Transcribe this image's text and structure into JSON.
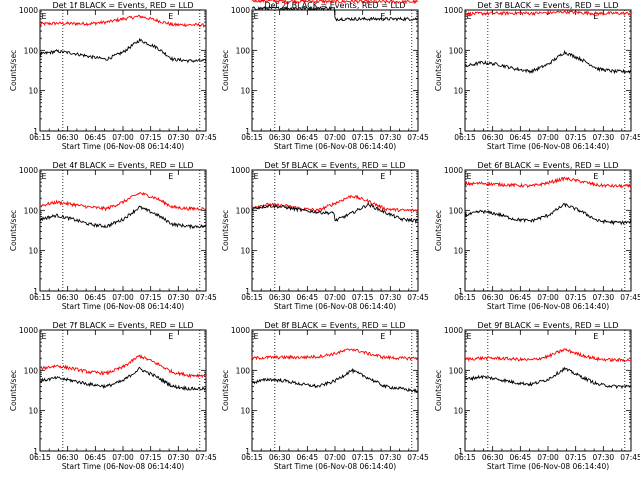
{
  "colors": {
    "events": "#000000",
    "lld": "#ff0000",
    "axis": "#000000",
    "background": "#ffffff"
  },
  "chart_data": [
    {
      "type": "line",
      "title": "Det 1f BLACK = Events, RED = LLD",
      "xlabel": "Start Time (06-Nov-08 06:14:40)",
      "ylabel": "Counts/sec",
      "ylog": true,
      "ylim": [
        1,
        1000
      ],
      "yticks": [
        "1",
        "10",
        "100",
        "1000"
      ],
      "xticks": [
        "06:15",
        "06:30",
        "06:45",
        "07:00",
        "07:15",
        "07:30",
        "07:45"
      ],
      "xlim_minutes": [
        0,
        40
      ],
      "marker_label": "E",
      "marker_minute": 31.5,
      "vlines_minutes": [
        5.5,
        38.5
      ],
      "annotations": [
        "E"
      ],
      "series": [
        {
          "color": "red",
          "x": [
            0,
            4,
            8,
            12,
            16,
            20,
            24,
            28,
            32,
            36,
            40
          ],
          "y": [
            450,
            470,
            460,
            460,
            500,
            600,
            700,
            560,
            430,
            430,
            420
          ]
        },
        {
          "color": "black",
          "x": [
            0,
            4,
            8,
            12,
            16,
            20,
            24,
            28,
            32,
            36,
            40
          ],
          "y": [
            80,
            95,
            85,
            70,
            60,
            90,
            180,
            120,
            60,
            55,
            55
          ]
        }
      ]
    },
    {
      "type": "line",
      "title": "Det 2f BLACK = Events, RED = LLD",
      "xlabel": "Start Time (06-Nov-08 06:14:40)",
      "ylabel": "Counts/sec",
      "ylog": true,
      "ylim": [
        1,
        1000
      ],
      "yticks": [
        "1",
        "10",
        "100",
        "1000"
      ],
      "xticks": [
        "06:15",
        "06:30",
        "06:45",
        "07:00",
        "07:15",
        "07:30",
        "07:45"
      ],
      "xlim_minutes": [
        0,
        40
      ],
      "marker_label": "E",
      "marker_minute": 31.5,
      "vlines_minutes": [
        5.5,
        38.5
      ],
      "annotations": [
        "E"
      ],
      "series": [
        {
          "color": "red",
          "x": [
            0,
            4,
            8,
            12,
            16,
            20,
            24,
            28,
            32,
            36,
            40
          ],
          "y": [
            1700,
            1700,
            1650,
            1650,
            1650,
            1600,
            1650,
            1600,
            1600,
            1600,
            1600
          ]
        },
        {
          "color": "black",
          "x": [
            0,
            4,
            8,
            12,
            16,
            19.9,
            20,
            24,
            28,
            32,
            36,
            40
          ],
          "y": [
            1100,
            1100,
            1100,
            1100,
            1100,
            1100,
            600,
            600,
            600,
            600,
            600,
            600
          ]
        }
      ]
    },
    {
      "type": "line",
      "title": "Det 3f BLACK = Events, RED = LLD",
      "xlabel": "Start Time (06-Nov-08 06:14:40)",
      "ylabel": "Counts/sec",
      "ylog": true,
      "ylim": [
        1,
        1000
      ],
      "yticks": [
        "1",
        "10",
        "100",
        "1000"
      ],
      "xticks": [
        "06:15",
        "06:30",
        "06:45",
        "07:00",
        "07:15",
        "07:30",
        "07:45"
      ],
      "xlim_minutes": [
        0,
        40
      ],
      "marker_label": "E",
      "marker_minute": 31.5,
      "vlines_minutes": [
        5.5,
        38.5
      ],
      "annotations": [
        "E"
      ],
      "series": [
        {
          "color": "red",
          "x": [
            0,
            4,
            8,
            12,
            16,
            20,
            24,
            28,
            32,
            36,
            40
          ],
          "y": [
            800,
            820,
            830,
            840,
            830,
            850,
            900,
            860,
            820,
            830,
            820
          ]
        },
        {
          "color": "black",
          "x": [
            0,
            4,
            8,
            12,
            16,
            20,
            24,
            28,
            32,
            36,
            40
          ],
          "y": [
            40,
            50,
            45,
            35,
            30,
            45,
            90,
            60,
            35,
            30,
            30
          ]
        }
      ]
    },
    {
      "type": "line",
      "title": "Det 4f BLACK = Events, RED = LLD",
      "xlabel": "Start Time (06-Nov-08 06:14:40)",
      "ylabel": "Counts/sec",
      "ylog": true,
      "ylim": [
        1,
        1000
      ],
      "yticks": [
        "1",
        "10",
        "100",
        "1000"
      ],
      "xticks": [
        "06:15",
        "06:30",
        "06:45",
        "07:00",
        "07:15",
        "07:30",
        "07:45"
      ],
      "xlim_minutes": [
        0,
        40
      ],
      "marker_label": "E",
      "marker_minute": 31.5,
      "vlines_minutes": [
        5.5,
        38.5
      ],
      "annotations": [
        "E"
      ],
      "series": [
        {
          "color": "red",
          "x": [
            0,
            4,
            8,
            12,
            16,
            20,
            24,
            28,
            32,
            36,
            40
          ],
          "y": [
            130,
            160,
            140,
            120,
            110,
            160,
            270,
            200,
            120,
            110,
            110
          ]
        },
        {
          "color": "black",
          "x": [
            0,
            4,
            8,
            12,
            16,
            20,
            24,
            28,
            32,
            36,
            40
          ],
          "y": [
            60,
            75,
            60,
            45,
            40,
            60,
            120,
            80,
            45,
            40,
            40
          ]
        }
      ]
    },
    {
      "type": "line",
      "title": "Det 5f BLACK = Events, RED = LLD",
      "xlabel": "Start Time (06-Nov-08 06:14:40)",
      "ylabel": "Counts/sec",
      "ylog": true,
      "ylim": [
        1,
        1000
      ],
      "yticks": [
        "1",
        "10",
        "100",
        "1000"
      ],
      "xticks": [
        "06:15",
        "06:30",
        "06:45",
        "07:00",
        "07:15",
        "07:30",
        "07:45"
      ],
      "xlim_minutes": [
        0,
        40
      ],
      "marker_label": "E",
      "marker_minute": 31.5,
      "vlines_minutes": [
        5.5,
        38.5
      ],
      "annotations": [
        "E"
      ],
      "series": [
        {
          "color": "red",
          "x": [
            0,
            4,
            8,
            12,
            16,
            20,
            24,
            28,
            32,
            36,
            40
          ],
          "y": [
            120,
            140,
            130,
            110,
            100,
            150,
            230,
            170,
            110,
            100,
            100
          ]
        },
        {
          "color": "black",
          "x": [
            0,
            4,
            8,
            12,
            16,
            19.9,
            20,
            24,
            28,
            32,
            36,
            40
          ],
          "y": [
            110,
            130,
            120,
            100,
            90,
            85,
            55,
            85,
            140,
            90,
            60,
            55
          ]
        }
      ]
    },
    {
      "type": "line",
      "title": "Det 6f BLACK = Events, RED = LLD",
      "xlabel": "Start Time (06-Nov-08 06:14:40)",
      "ylabel": "Counts/sec",
      "ylog": true,
      "ylim": [
        1,
        1000
      ],
      "yticks": [
        "1",
        "10",
        "100",
        "1000"
      ],
      "xticks": [
        "06:15",
        "06:30",
        "06:45",
        "07:00",
        "07:15",
        "07:30",
        "07:45"
      ],
      "xlim_minutes": [
        0,
        40
      ],
      "marker_label": "E",
      "marker_minute": 31.5,
      "vlines_minutes": [
        5.5,
        38.5
      ],
      "annotations": [
        "E"
      ],
      "series": [
        {
          "color": "red",
          "x": [
            0,
            4,
            8,
            12,
            16,
            20,
            24,
            28,
            32,
            36,
            40
          ],
          "y": [
            450,
            470,
            440,
            420,
            400,
            480,
            620,
            520,
            420,
            400,
            400
          ]
        },
        {
          "color": "black",
          "x": [
            0,
            4,
            8,
            12,
            16,
            20,
            24,
            28,
            32,
            36,
            40
          ],
          "y": [
            75,
            95,
            80,
            60,
            55,
            75,
            140,
            95,
            55,
            50,
            50
          ]
        }
      ]
    },
    {
      "type": "line",
      "title": "Det 7f BLACK = Events, RED = LLD",
      "xlabel": "Start Time (06-Nov-08 06:14:40)",
      "ylabel": "Counts/sec",
      "ylog": true,
      "ylim": [
        1,
        1000
      ],
      "yticks": [
        "1",
        "10",
        "100",
        "1000"
      ],
      "xticks": [
        "06:15",
        "06:30",
        "06:45",
        "07:00",
        "07:15",
        "07:30",
        "07:45"
      ],
      "xlim_minutes": [
        0,
        40
      ],
      "marker_label": "E",
      "marker_minute": 31.5,
      "vlines_minutes": [
        5.5,
        38.5
      ],
      "annotations": [
        "E"
      ],
      "series": [
        {
          "color": "red",
          "x": [
            0,
            4,
            8,
            12,
            16,
            20,
            24,
            28,
            32,
            36,
            40
          ],
          "y": [
            110,
            130,
            110,
            90,
            85,
            120,
            230,
            150,
            90,
            75,
            75
          ]
        },
        {
          "color": "black",
          "x": [
            0,
            4,
            8,
            12,
            16,
            20,
            24,
            28,
            32,
            36,
            40
          ],
          "y": [
            55,
            65,
            55,
            45,
            40,
            55,
            110,
            70,
            40,
            35,
            35
          ]
        }
      ]
    },
    {
      "type": "line",
      "title": "Det 8f BLACK = Events, RED = LLD",
      "xlabel": "Start Time (06-Nov-08 06:14:40)",
      "ylabel": "Counts/sec",
      "ylog": true,
      "ylim": [
        1,
        1000
      ],
      "yticks": [
        "1",
        "10",
        "100",
        "1000"
      ],
      "xticks": [
        "06:15",
        "06:30",
        "06:45",
        "07:00",
        "07:15",
        "07:30",
        "07:45"
      ],
      "xlim_minutes": [
        0,
        40
      ],
      "marker_label": "E",
      "marker_minute": 31.5,
      "vlines_minutes": [
        5.5,
        38.5
      ],
      "annotations": [
        "E"
      ],
      "series": [
        {
          "color": "red",
          "x": [
            0,
            4,
            8,
            12,
            16,
            20,
            24,
            28,
            32,
            36,
            40
          ],
          "y": [
            200,
            210,
            210,
            210,
            220,
            260,
            340,
            260,
            210,
            200,
            200
          ]
        },
        {
          "color": "black",
          "x": [
            0,
            4,
            8,
            12,
            16,
            20,
            24,
            28,
            32,
            36,
            40
          ],
          "y": [
            50,
            60,
            55,
            45,
            40,
            55,
            100,
            65,
            40,
            35,
            30
          ]
        }
      ]
    },
    {
      "type": "line",
      "title": "Det 9f BLACK = Events, RED = LLD",
      "xlabel": "Start Time (06-Nov-08 06:14:40)",
      "ylabel": "Counts/sec",
      "ylog": true,
      "ylim": [
        1,
        1000
      ],
      "yticks": [
        "1",
        "10",
        "100",
        "1000"
      ],
      "xticks": [
        "06:15",
        "06:30",
        "06:45",
        "07:00",
        "07:15",
        "07:30",
        "07:45"
      ],
      "xlim_minutes": [
        0,
        40
      ],
      "marker_label": "E",
      "marker_minute": 31.5,
      "vlines_minutes": [
        5.5,
        38.5
      ],
      "annotations": [
        "E"
      ],
      "series": [
        {
          "color": "red",
          "x": [
            0,
            4,
            8,
            12,
            16,
            20,
            24,
            28,
            32,
            36,
            40
          ],
          "y": [
            190,
            200,
            200,
            190,
            180,
            220,
            330,
            240,
            190,
            180,
            180
          ]
        },
        {
          "color": "black",
          "x": [
            0,
            4,
            8,
            12,
            16,
            20,
            24,
            28,
            32,
            36,
            40
          ],
          "y": [
            60,
            70,
            60,
            50,
            45,
            60,
            110,
            70,
            45,
            40,
            40
          ]
        }
      ]
    }
  ]
}
